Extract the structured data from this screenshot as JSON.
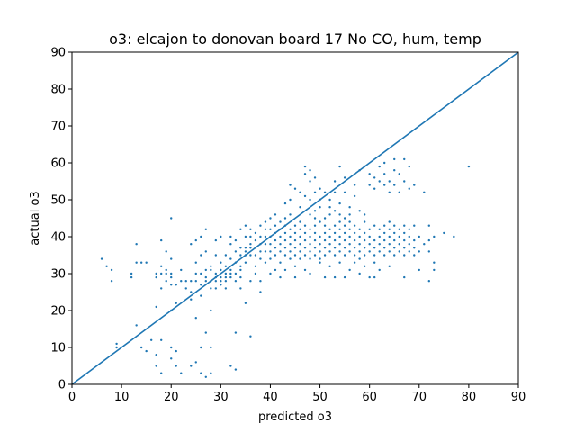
{
  "chart_data": {
    "type": "scatter",
    "title": "o3: elcajon to donovan board 17 No CO, hum, temp",
    "xlabel": "predicted o3",
    "ylabel": "actual o3",
    "xlim": [
      0,
      90
    ],
    "ylim": [
      0,
      90
    ],
    "xticks": [
      "0",
      "10",
      "20",
      "30",
      "40",
      "50",
      "60",
      "70",
      "80",
      "90"
    ],
    "yticks": [
      "0",
      "10",
      "20",
      "30",
      "40",
      "50",
      "60",
      "70",
      "80",
      "90"
    ],
    "grid": false,
    "legend": "none",
    "colors": {
      "series": "#1f77b4"
    },
    "reference_line": {
      "x": [
        0,
        90
      ],
      "y": [
        0,
        90
      ]
    },
    "points": [
      [
        6,
        34
      ],
      [
        7,
        32
      ],
      [
        8,
        28
      ],
      [
        8,
        31
      ],
      [
        9,
        10
      ],
      [
        9,
        11
      ],
      [
        12,
        29
      ],
      [
        12,
        30
      ],
      [
        13,
        16
      ],
      [
        13,
        33
      ],
      [
        13,
        38
      ],
      [
        14,
        10
      ],
      [
        14,
        33
      ],
      [
        15,
        33
      ],
      [
        15,
        9
      ],
      [
        16,
        12
      ],
      [
        17,
        30
      ],
      [
        17,
        29
      ],
      [
        17,
        21
      ],
      [
        17,
        5
      ],
      [
        17,
        8
      ],
      [
        18,
        26
      ],
      [
        18,
        30
      ],
      [
        18,
        32
      ],
      [
        18,
        12
      ],
      [
        18,
        39
      ],
      [
        18,
        3
      ],
      [
        19,
        28
      ],
      [
        19,
        31
      ],
      [
        19,
        30
      ],
      [
        19,
        36
      ],
      [
        20,
        45
      ],
      [
        20,
        27
      ],
      [
        20,
        29
      ],
      [
        20,
        30
      ],
      [
        20,
        20
      ],
      [
        20,
        34
      ],
      [
        20,
        10
      ],
      [
        20,
        7
      ],
      [
        21,
        22
      ],
      [
        21,
        9
      ],
      [
        21,
        5
      ],
      [
        21,
        27
      ],
      [
        22,
        3
      ],
      [
        22,
        31
      ],
      [
        22,
        28
      ],
      [
        23,
        28
      ],
      [
        23,
        26
      ],
      [
        24,
        28
      ],
      [
        24,
        25
      ],
      [
        24,
        23
      ],
      [
        24,
        38
      ],
      [
        24,
        5
      ],
      [
        25,
        28
      ],
      [
        25,
        30
      ],
      [
        25,
        33
      ],
      [
        25,
        39
      ],
      [
        25,
        6
      ],
      [
        25,
        18
      ],
      [
        26,
        27
      ],
      [
        26,
        30
      ],
      [
        26,
        24
      ],
      [
        26,
        35
      ],
      [
        26,
        10
      ],
      [
        26,
        3
      ],
      [
        26,
        40
      ],
      [
        27,
        29
      ],
      [
        27,
        31
      ],
      [
        27,
        28
      ],
      [
        27,
        36
      ],
      [
        27,
        42
      ],
      [
        27,
        2
      ],
      [
        27,
        14
      ],
      [
        28,
        28
      ],
      [
        28,
        31
      ],
      [
        28,
        32
      ],
      [
        28,
        26
      ],
      [
        28,
        3
      ],
      [
        28,
        20
      ],
      [
        28,
        10
      ],
      [
        29,
        28
      ],
      [
        29,
        29
      ],
      [
        29,
        30
      ],
      [
        29,
        26
      ],
      [
        29,
        39
      ],
      [
        29,
        35
      ],
      [
        30,
        28
      ],
      [
        30,
        29
      ],
      [
        30,
        31
      ],
      [
        30,
        33
      ],
      [
        30,
        27
      ],
      [
        30,
        40
      ],
      [
        31,
        28
      ],
      [
        31,
        29
      ],
      [
        31,
        30
      ],
      [
        31,
        26
      ],
      [
        31,
        35
      ],
      [
        31,
        32
      ],
      [
        32,
        29
      ],
      [
        32,
        31
      ],
      [
        32,
        34
      ],
      [
        32,
        38
      ],
      [
        32,
        40
      ],
      [
        32,
        30
      ],
      [
        32,
        5
      ],
      [
        33,
        28
      ],
      [
        33,
        30
      ],
      [
        33,
        33
      ],
      [
        33,
        36
      ],
      [
        33,
        39
      ],
      [
        33,
        14
      ],
      [
        33,
        4
      ],
      [
        34,
        29
      ],
      [
        34,
        31
      ],
      [
        34,
        35
      ],
      [
        34,
        37
      ],
      [
        34,
        42
      ],
      [
        34,
        32
      ],
      [
        34,
        26
      ],
      [
        35,
        33
      ],
      [
        35,
        35
      ],
      [
        35,
        37
      ],
      [
        35,
        40
      ],
      [
        35,
        43
      ],
      [
        35,
        36
      ],
      [
        35,
        22
      ],
      [
        36,
        35
      ],
      [
        36,
        37
      ],
      [
        36,
        38
      ],
      [
        36,
        40
      ],
      [
        36,
        42
      ],
      [
        36,
        28
      ],
      [
        36,
        13
      ],
      [
        37,
        35
      ],
      [
        37,
        37
      ],
      [
        37,
        39
      ],
      [
        37,
        41
      ],
      [
        37,
        30
      ],
      [
        37,
        32
      ],
      [
        38,
        34
      ],
      [
        38,
        36
      ],
      [
        38,
        38
      ],
      [
        38,
        40
      ],
      [
        38,
        43
      ],
      [
        38,
        25
      ],
      [
        38,
        28
      ],
      [
        39,
        36
      ],
      [
        39,
        38
      ],
      [
        39,
        40
      ],
      [
        39,
        42
      ],
      [
        39,
        44
      ],
      [
        39,
        33
      ],
      [
        40,
        36
      ],
      [
        40,
        38
      ],
      [
        40,
        40
      ],
      [
        40,
        42
      ],
      [
        40,
        45
      ],
      [
        40,
        30
      ],
      [
        40,
        34
      ],
      [
        41,
        35
      ],
      [
        41,
        37
      ],
      [
        41,
        39
      ],
      [
        41,
        41
      ],
      [
        41,
        43
      ],
      [
        41,
        31
      ],
      [
        41,
        46
      ],
      [
        42,
        36
      ],
      [
        42,
        38
      ],
      [
        42,
        40
      ],
      [
        42,
        42
      ],
      [
        42,
        44
      ],
      [
        42,
        29
      ],
      [
        42,
        33
      ],
      [
        43,
        35
      ],
      [
        43,
        37
      ],
      [
        43,
        39
      ],
      [
        43,
        41
      ],
      [
        43,
        43
      ],
      [
        43,
        45
      ],
      [
        43,
        49
      ],
      [
        43,
        31
      ],
      [
        44,
        34
      ],
      [
        44,
        36
      ],
      [
        44,
        38
      ],
      [
        44,
        40
      ],
      [
        44,
        42
      ],
      [
        44,
        46
      ],
      [
        44,
        54
      ],
      [
        44,
        50
      ],
      [
        45,
        35
      ],
      [
        45,
        37
      ],
      [
        45,
        39
      ],
      [
        45,
        41
      ],
      [
        45,
        43
      ],
      [
        45,
        53
      ],
      [
        45,
        29
      ],
      [
        45,
        32
      ],
      [
        46,
        34
      ],
      [
        46,
        36
      ],
      [
        46,
        38
      ],
      [
        46,
        40
      ],
      [
        46,
        42
      ],
      [
        46,
        44
      ],
      [
        46,
        48
      ],
      [
        46,
        52
      ],
      [
        47,
        35
      ],
      [
        47,
        37
      ],
      [
        47,
        39
      ],
      [
        47,
        41
      ],
      [
        47,
        43
      ],
      [
        47,
        51
      ],
      [
        47,
        57
      ],
      [
        47,
        59
      ],
      [
        47,
        31
      ],
      [
        48,
        34
      ],
      [
        48,
        36
      ],
      [
        48,
        38
      ],
      [
        48,
        40
      ],
      [
        48,
        42
      ],
      [
        48,
        46
      ],
      [
        48,
        50
      ],
      [
        48,
        55
      ],
      [
        48,
        58
      ],
      [
        48,
        30
      ],
      [
        49,
        35
      ],
      [
        49,
        37
      ],
      [
        49,
        39
      ],
      [
        49,
        41
      ],
      [
        49,
        43
      ],
      [
        49,
        45
      ],
      [
        49,
        47
      ],
      [
        49,
        52
      ],
      [
        49,
        56
      ],
      [
        50,
        34
      ],
      [
        50,
        36
      ],
      [
        50,
        38
      ],
      [
        50,
        40
      ],
      [
        50,
        44
      ],
      [
        50,
        48
      ],
      [
        50,
        50
      ],
      [
        50,
        53
      ],
      [
        50,
        33
      ],
      [
        51,
        35
      ],
      [
        51,
        37
      ],
      [
        51,
        39
      ],
      [
        51,
        41
      ],
      [
        51,
        43
      ],
      [
        51,
        45
      ],
      [
        51,
        52
      ],
      [
        51,
        29
      ],
      [
        52,
        36
      ],
      [
        52,
        38
      ],
      [
        52,
        40
      ],
      [
        52,
        42
      ],
      [
        52,
        46
      ],
      [
        52,
        48
      ],
      [
        52,
        50
      ],
      [
        52,
        32
      ],
      [
        53,
        35
      ],
      [
        53,
        37
      ],
      [
        53,
        39
      ],
      [
        53,
        41
      ],
      [
        53,
        43
      ],
      [
        53,
        47
      ],
      [
        53,
        52
      ],
      [
        53,
        55
      ],
      [
        53,
        29
      ],
      [
        54,
        36
      ],
      [
        54,
        38
      ],
      [
        54,
        40
      ],
      [
        54,
        42
      ],
      [
        54,
        44
      ],
      [
        54,
        46
      ],
      [
        54,
        49
      ],
      [
        54,
        59
      ],
      [
        54,
        33
      ],
      [
        55,
        35
      ],
      [
        55,
        37
      ],
      [
        55,
        39
      ],
      [
        55,
        41
      ],
      [
        55,
        43
      ],
      [
        55,
        45
      ],
      [
        55,
        52
      ],
      [
        55,
        56
      ],
      [
        55,
        29
      ],
      [
        56,
        36
      ],
      [
        56,
        38
      ],
      [
        56,
        40
      ],
      [
        56,
        42
      ],
      [
        56,
        44
      ],
      [
        56,
        46
      ],
      [
        56,
        48
      ],
      [
        56,
        31
      ],
      [
        57,
        35
      ],
      [
        57,
        37
      ],
      [
        57,
        39
      ],
      [
        57,
        41
      ],
      [
        57,
        43
      ],
      [
        57,
        51
      ],
      [
        57,
        54
      ],
      [
        57,
        57
      ],
      [
        57,
        33
      ],
      [
        58,
        34
      ],
      [
        58,
        36
      ],
      [
        58,
        38
      ],
      [
        58,
        40
      ],
      [
        58,
        42
      ],
      [
        58,
        47
      ],
      [
        58,
        58
      ],
      [
        58,
        30
      ],
      [
        59,
        35
      ],
      [
        59,
        37
      ],
      [
        59,
        39
      ],
      [
        59,
        41
      ],
      [
        59,
        44
      ],
      [
        59,
        46
      ],
      [
        59,
        59
      ],
      [
        59,
        32
      ],
      [
        60,
        36
      ],
      [
        60,
        38
      ],
      [
        60,
        40
      ],
      [
        60,
        42
      ],
      [
        60,
        54
      ],
      [
        60,
        57
      ],
      [
        60,
        29
      ],
      [
        61,
        35
      ],
      [
        61,
        37
      ],
      [
        61,
        39
      ],
      [
        61,
        43
      ],
      [
        61,
        53
      ],
      [
        61,
        56
      ],
      [
        61,
        29
      ],
      [
        61,
        33
      ],
      [
        62,
        36
      ],
      [
        62,
        38
      ],
      [
        62,
        40
      ],
      [
        62,
        42
      ],
      [
        62,
        55
      ],
      [
        62,
        59
      ],
      [
        62,
        31
      ],
      [
        63,
        35
      ],
      [
        63,
        37
      ],
      [
        63,
        39
      ],
      [
        63,
        41
      ],
      [
        63,
        43
      ],
      [
        63,
        54
      ],
      [
        63,
        57
      ],
      [
        63,
        60
      ],
      [
        64,
        36
      ],
      [
        64,
        38
      ],
      [
        64,
        40
      ],
      [
        64,
        42
      ],
      [
        64,
        44
      ],
      [
        64,
        52
      ],
      [
        64,
        55
      ],
      [
        64,
        32
      ],
      [
        65,
        35
      ],
      [
        65,
        37
      ],
      [
        65,
        39
      ],
      [
        65,
        41
      ],
      [
        65,
        43
      ],
      [
        65,
        54
      ],
      [
        65,
        58
      ],
      [
        65,
        61
      ],
      [
        66,
        36
      ],
      [
        66,
        38
      ],
      [
        66,
        40
      ],
      [
        66,
        42
      ],
      [
        66,
        52
      ],
      [
        66,
        57
      ],
      [
        67,
        35
      ],
      [
        67,
        37
      ],
      [
        67,
        39
      ],
      [
        67,
        41
      ],
      [
        67,
        43
      ],
      [
        67,
        55
      ],
      [
        67,
        61
      ],
      [
        67,
        29
      ],
      [
        68,
        36
      ],
      [
        68,
        38
      ],
      [
        68,
        40
      ],
      [
        68,
        42
      ],
      [
        68,
        53
      ],
      [
        68,
        59
      ],
      [
        69,
        35
      ],
      [
        69,
        37
      ],
      [
        69,
        39
      ],
      [
        69,
        43
      ],
      [
        69,
        54
      ],
      [
        70,
        36
      ],
      [
        70,
        40
      ],
      [
        70,
        31
      ],
      [
        71,
        38
      ],
      [
        71,
        52
      ],
      [
        72,
        36
      ],
      [
        72,
        28
      ],
      [
        72,
        39
      ],
      [
        72,
        43
      ],
      [
        73,
        31
      ],
      [
        73,
        33
      ],
      [
        73,
        40
      ],
      [
        75,
        41
      ],
      [
        77,
        40
      ],
      [
        80,
        59
      ]
    ]
  }
}
